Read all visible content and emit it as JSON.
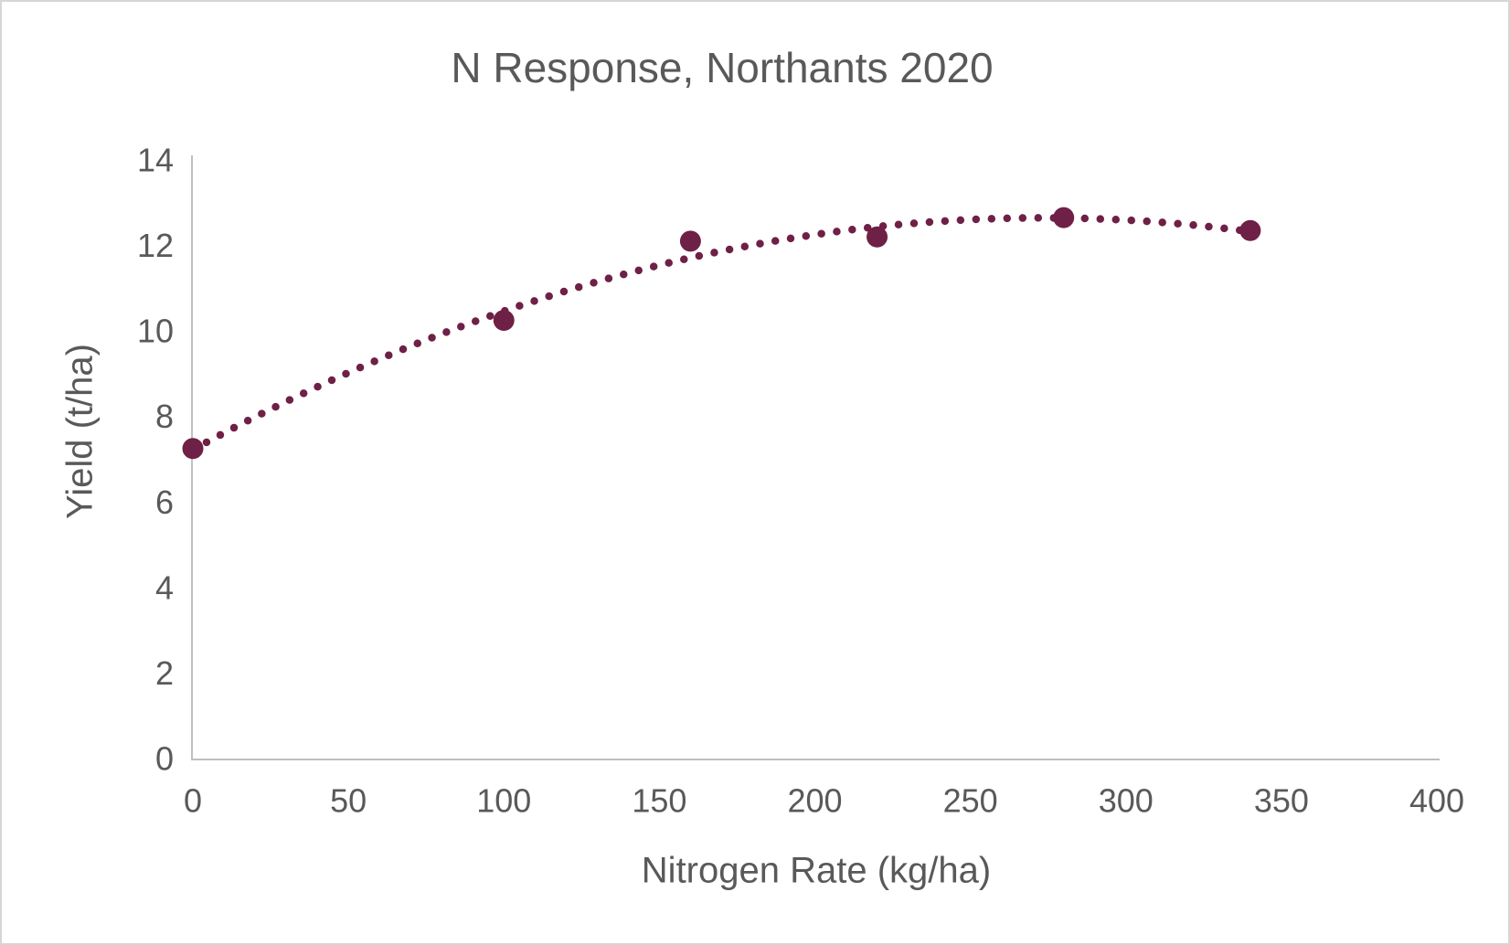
{
  "frame": {
    "background": "#FFFFFF",
    "border_color": "#D6D6D6"
  },
  "chart_data": {
    "type": "scatter",
    "title": "N Response, Northants 2020",
    "xlabel": "Nitrogen Rate (kg/ha)",
    "ylabel": "Yield (t/ha)",
    "x": [
      0,
      100,
      160,
      220,
      280,
      340
    ],
    "y": [
      7.25,
      10.25,
      12.1,
      12.2,
      12.65,
      12.35
    ],
    "trendline": {
      "type": "polynomial",
      "order": 2,
      "style": "dotted"
    },
    "xlim": [
      0,
      400
    ],
    "ylim": [
      0,
      14
    ],
    "x_ticks": [
      0,
      50,
      100,
      150,
      200,
      250,
      300,
      350,
      400
    ],
    "y_ticks": [
      0,
      2,
      4,
      6,
      8,
      10,
      12,
      14
    ],
    "grid": false,
    "legend": "none",
    "colors": {
      "series": "#6E2046",
      "axis_line": "#BFBFBF",
      "tick_text": "#595959",
      "title_text": "#595959"
    }
  }
}
